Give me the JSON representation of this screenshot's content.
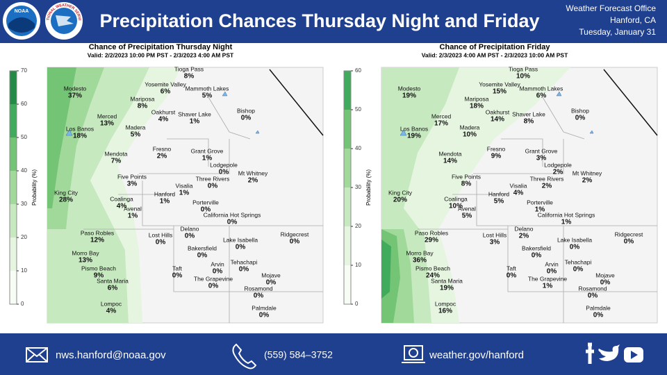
{
  "header": {
    "logo_left": "NOAA",
    "logo_right": "NATIONAL WEATHER SERVICE",
    "title": "Precipitation Chances Thursday Night and Friday",
    "office": [
      "Weather Forecast Office",
      "Hanford, CA",
      "Tuesday, January 31"
    ]
  },
  "maps": [
    {
      "title": "Chance of Precipitation Thursday Night",
      "valid": "Valid: 2/2/2023 10:00 PM PST - 2/3/2023 4:00 AM PST",
      "colorbar": {
        "label": "Probability (%)",
        "ticks": [
          0,
          10,
          20,
          30,
          40,
          50,
          60,
          70
        ]
      },
      "stations": [
        {
          "name": "Tioga Pass",
          "value": "8%"
        },
        {
          "name": "Yosemite Valley",
          "value": "6%"
        },
        {
          "name": "Mammoth Lakes",
          "value": "5%"
        },
        {
          "name": "Modesto",
          "value": "37%"
        },
        {
          "name": "Mariposa",
          "value": "8%"
        },
        {
          "name": "Bishop",
          "value": "0%"
        },
        {
          "name": "Oakhurst",
          "value": "4%"
        },
        {
          "name": "Shaver Lake",
          "value": "1%"
        },
        {
          "name": "Merced",
          "value": "13%"
        },
        {
          "name": "Madera",
          "value": "5%"
        },
        {
          "name": "Los Banos",
          "value": "18%"
        },
        {
          "name": "Fresno",
          "value": "2%"
        },
        {
          "name": "Grant Grove",
          "value": "1%"
        },
        {
          "name": "Mendota",
          "value": "7%"
        },
        {
          "name": "Lodgepole",
          "value": "0%"
        },
        {
          "name": "Mt Whitney",
          "value": "2%"
        },
        {
          "name": "Five Points",
          "value": "3%"
        },
        {
          "name": "Three Rivers",
          "value": "0%"
        },
        {
          "name": "Visalia",
          "value": "1%"
        },
        {
          "name": "King City",
          "value": "28%"
        },
        {
          "name": "Hanford",
          "value": "1%"
        },
        {
          "name": "Coalinga",
          "value": "4%"
        },
        {
          "name": "Porterville",
          "value": "0%"
        },
        {
          "name": "Avenal",
          "value": "1%"
        },
        {
          "name": "California Hot Springs",
          "value": "0%"
        },
        {
          "name": "Delano",
          "value": "0%"
        },
        {
          "name": "Paso Robles",
          "value": "12%"
        },
        {
          "name": "Lost Hills",
          "value": "0%"
        },
        {
          "name": "Lake Isabella",
          "value": "0%"
        },
        {
          "name": "Ridgecrest",
          "value": "0%"
        },
        {
          "name": "Bakersfield",
          "value": "0%"
        },
        {
          "name": "Morro Bay",
          "value": "13%"
        },
        {
          "name": "Arvin",
          "value": "0%"
        },
        {
          "name": "Tehachapi",
          "value": "0%"
        },
        {
          "name": "Pismo Beach",
          "value": "9%"
        },
        {
          "name": "Taft",
          "value": "0%"
        },
        {
          "name": "Mojave",
          "value": "0%"
        },
        {
          "name": "The Grapevine",
          "value": "0%"
        },
        {
          "name": "Santa Maria",
          "value": "6%"
        },
        {
          "name": "Rosamond",
          "value": "0%"
        },
        {
          "name": "Lompoc",
          "value": "4%"
        },
        {
          "name": "Palmdale",
          "value": "0%"
        }
      ]
    },
    {
      "title": "Chance of Precipitation Friday",
      "valid": "Valid: 2/3/2023 4:00 AM PST - 2/3/2023 10:00 AM PST",
      "colorbar": {
        "label": "Probability (%)",
        "ticks": [
          0,
          10,
          20,
          30,
          40,
          50,
          60
        ]
      },
      "stations": [
        {
          "name": "Tioga Pass",
          "value": "10%"
        },
        {
          "name": "Yosemite Valley",
          "value": "15%"
        },
        {
          "name": "Mammoth Lakes",
          "value": "6%"
        },
        {
          "name": "Modesto",
          "value": "19%"
        },
        {
          "name": "Mariposa",
          "value": "18%"
        },
        {
          "name": "Bishop",
          "value": "0%"
        },
        {
          "name": "Oakhurst",
          "value": "14%"
        },
        {
          "name": "Shaver Lake",
          "value": "8%"
        },
        {
          "name": "Merced",
          "value": "17%"
        },
        {
          "name": "Madera",
          "value": "10%"
        },
        {
          "name": "Los Banos",
          "value": "19%"
        },
        {
          "name": "Fresno",
          "value": "9%"
        },
        {
          "name": "Grant Grove",
          "value": "3%"
        },
        {
          "name": "Mendota",
          "value": "14%"
        },
        {
          "name": "Lodgepole",
          "value": "2%"
        },
        {
          "name": "Mt Whitney",
          "value": "2%"
        },
        {
          "name": "Five Points",
          "value": "8%"
        },
        {
          "name": "Three Rivers",
          "value": "2%"
        },
        {
          "name": "Visalia",
          "value": "4%"
        },
        {
          "name": "King City",
          "value": "20%"
        },
        {
          "name": "Hanford",
          "value": "5%"
        },
        {
          "name": "Coalinga",
          "value": "10%"
        },
        {
          "name": "Porterville",
          "value": "1%"
        },
        {
          "name": "Avenal",
          "value": "5%"
        },
        {
          "name": "California Hot Springs",
          "value": "1%"
        },
        {
          "name": "Delano",
          "value": "2%"
        },
        {
          "name": "Paso Robles",
          "value": "29%"
        },
        {
          "name": "Lost Hills",
          "value": "3%"
        },
        {
          "name": "Lake Isabella",
          "value": "0%"
        },
        {
          "name": "Ridgecrest",
          "value": "0%"
        },
        {
          "name": "Bakersfield",
          "value": "0%"
        },
        {
          "name": "Morro Bay",
          "value": "36%"
        },
        {
          "name": "Arvin",
          "value": "0%"
        },
        {
          "name": "Tehachapi",
          "value": "0%"
        },
        {
          "name": "Pismo Beach",
          "value": "24%"
        },
        {
          "name": "Taft",
          "value": "0%"
        },
        {
          "name": "Mojave",
          "value": "0%"
        },
        {
          "name": "The Grapevine",
          "value": "1%"
        },
        {
          "name": "Santa Maria",
          "value": "19%"
        },
        {
          "name": "Rosamond",
          "value": "0%"
        },
        {
          "name": "Lompoc",
          "value": "16%"
        },
        {
          "name": "Palmdale",
          "value": "0%"
        }
      ]
    }
  ],
  "footer": {
    "email": "nws.hanford@noaa.gov",
    "phone": "(559)  584–3752",
    "web": "weather.gov/hanford"
  }
}
